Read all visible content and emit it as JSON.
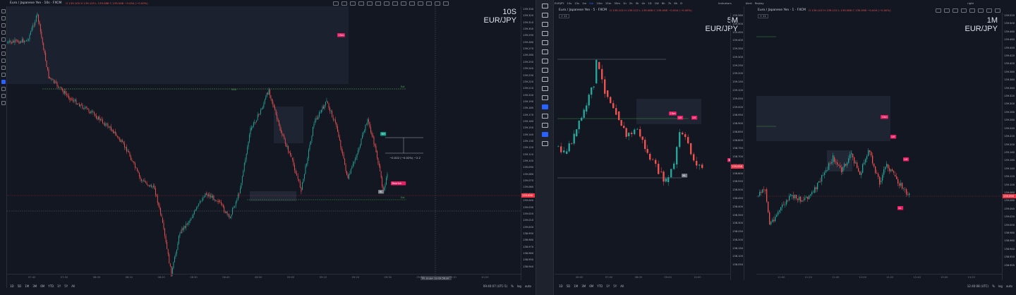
{
  "panels": [
    {
      "symbol": "Euro / Japanese Yen · 10s · FXCM",
      "ohlc": "O 139.105 H 139.125 L 139.086 C 139.098 −0.004 (−0.00%)",
      "timeframe": "10S",
      "pair": "EUR/JPY",
      "legend_badge": "+ 11",
      "price_labels": [
        "139.330",
        "139.320",
        "139.310",
        "139.300",
        "139.290",
        "139.280",
        "139.270",
        "139.260",
        "139.250",
        "139.240",
        "139.230",
        "139.220",
        "139.210",
        "139.200",
        "139.190",
        "139.180",
        "139.170",
        "139.160",
        "139.150",
        "139.140",
        "139.130",
        "139.120",
        "139.110",
        "139.100",
        "139.090",
        "139.080",
        "139.070",
        "139.060",
        "139.050",
        "139.040",
        "139.030",
        "139.020",
        "139.010",
        "139.000",
        "138.990",
        "138.980",
        "138.970",
        "138.960",
        "138.950",
        "138.940"
      ],
      "time_labels": [
        "07:40",
        "07:50",
        "08:00",
        "08:10",
        "08:20",
        "08:30",
        "08:40",
        "08:50",
        "09:00",
        "09:10",
        "09:20",
        "09:30",
        "09:40",
        "10:10",
        "10:20"
      ],
      "current_price": "139.098",
      "current_time": "Fri 13 Jan '23  09:56:30",
      "measure_text": "−0.022 (−0.02%) −2.2",
      "badge_15m": "15m",
      "badge_bearish": "Bearish",
      "badge_hh": "HH",
      "badge_hl": "HL",
      "line_label_xxx": "XXX",
      "line_label_ext": "Ext",
      "clock": "09:40:07 (UTC-5)",
      "scale_pct": "%",
      "scale_log": "log",
      "scale_auto": "auto",
      "ranges": [
        "1D",
        "5D",
        "1M",
        "3M",
        "6M",
        "YTD",
        "1Y",
        "5Y",
        "All"
      ]
    },
    {
      "symbol": "Euro / Japanese Yen · 5 · FXCM",
      "ohlc": "O 139.102 H 139.122 L 139.086 C 139.098 −0.004 (−0.00%)",
      "timeframe": "5M",
      "pair": "EUR/JPY",
      "legend_badge": "+ 11",
      "tabs": [
        "EURJPY",
        "10s",
        "15s",
        "1m",
        "5m",
        "10m",
        "15m",
        "30m",
        "1h",
        "2h",
        "3h",
        "4h",
        "1D",
        "1W",
        "6h",
        "7h",
        "8h",
        "D"
      ],
      "active_tab": "5m",
      "price_labels": [
        "139.580",
        "139.500",
        "139.450",
        "139.400",
        "139.350",
        "139.300",
        "139.250",
        "139.200",
        "139.150",
        "139.100",
        "139.050",
        "139.000",
        "138.950",
        "138.900",
        "138.850",
        "138.800",
        "138.750",
        "138.700",
        "138.650",
        "138.600",
        "138.550",
        "138.500",
        "138.450",
        "138.400",
        "138.350",
        "138.300",
        "138.250",
        "138.200",
        "138.150",
        "138.100",
        "138.050"
      ],
      "time_labels": [
        "06:00",
        "07:00",
        "08:00",
        "09:00",
        "10:00"
      ],
      "badge_15m": "15m",
      "badge_lh": "LH",
      "badge_hl": "HL",
      "badge_bearish": "Bearish",
      "current_price": "139.098",
      "ranges": [
        "1D",
        "5D",
        "1M",
        "3M",
        "6M",
        "YTD",
        "1Y",
        "5Y",
        "All"
      ]
    },
    {
      "symbol": "Euro / Japanese Yen · 1 · FXCM",
      "ohlc": "O 139.102 H 139.122 L 139.086 C 139.098 −0.004 (−0.00%)",
      "timeframe": "1M",
      "pair": "EUR/JPY",
      "legend_badge": "+ 11",
      "toolbar": [
        "Indicators",
        "Alert",
        "Replay"
      ],
      "layout_name": "right",
      "price_labels": [
        "139.520",
        "139.500",
        "139.480",
        "139.460",
        "139.440",
        "139.420",
        "139.400",
        "139.380",
        "139.360",
        "139.340",
        "139.320",
        "139.300",
        "139.280",
        "139.260",
        "139.240",
        "139.220",
        "139.200",
        "139.180",
        "139.160",
        "139.140",
        "139.120",
        "139.100",
        "139.080",
        "139.060",
        "139.040",
        "139.020",
        "139.000",
        "138.980",
        "138.960",
        "138.940",
        "138.920",
        "138.900"
      ],
      "time_labels": [
        "11:00",
        "11:20",
        "11:40",
        "12:00",
        "12:20",
        "12:40",
        "13:00",
        "13:20"
      ],
      "badge_15m": "15m",
      "badge_lh": "LH",
      "badge_ll": "LL",
      "current_price": "139.098",
      "clock": "12:40:08 (UTC)",
      "scale_pct": "%",
      "scale_log": "log",
      "scale_auto": "auto"
    }
  ],
  "colors": {
    "bg": "#131722",
    "up": "#26a69a",
    "down": "#ef5350",
    "accent": "#2962ff",
    "bearish": "#e91e63",
    "hh": "#089981",
    "grid_green": "#4caf50"
  }
}
